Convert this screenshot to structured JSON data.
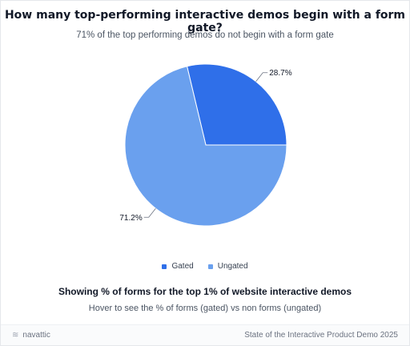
{
  "title": "How many top-performing interactive demos begin with a form gate?",
  "subtitle": "71% of the top performing demos do not begin with a form gate",
  "chart_data": {
    "type": "pie",
    "title": "How many top-performing interactive demos begin with a form gate?",
    "subtitle": "71% of the top performing demos do not begin with a form gate",
    "slices": [
      {
        "name": "Gated",
        "value": 28.7,
        "label": "28.7%",
        "color": "#2f6fe9"
      },
      {
        "name": "Ungated",
        "value": 71.2,
        "label": "71.2%",
        "color": "#6aa0ee"
      }
    ],
    "legend": "bottom"
  },
  "legend": {
    "items": [
      {
        "label": "Gated",
        "color": "#2f6fe9"
      },
      {
        "label": "Ungated",
        "color": "#6aa0ee"
      }
    ]
  },
  "footnote": "Showing % of forms for the top 1% of website interactive demos",
  "hint": "Hover to see the % of forms (gated) vs non forms (ungated)",
  "footer": {
    "brand": "navattic",
    "brand_icon": "navattic-logo-icon",
    "source": "State of the Interactive Product Demo 2025"
  }
}
